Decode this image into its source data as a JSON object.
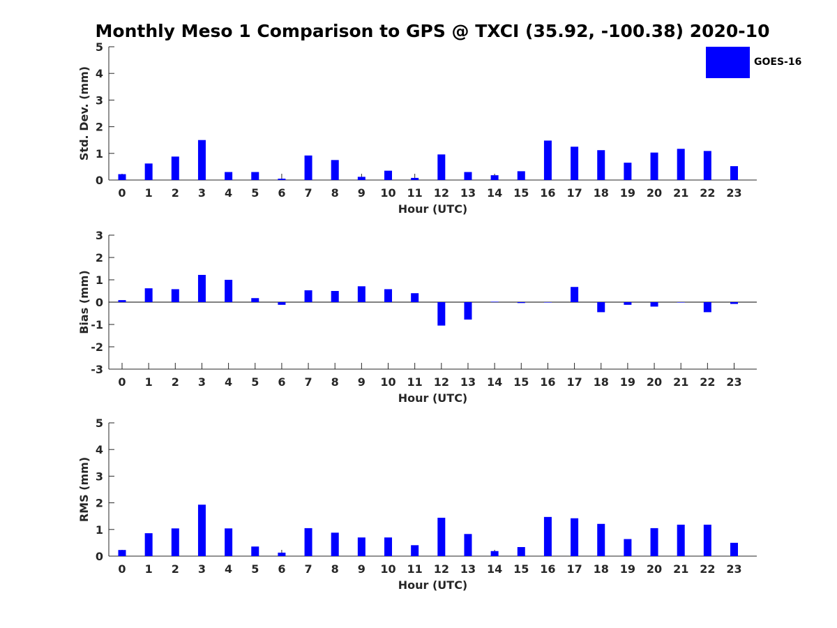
{
  "figure": {
    "title": "Monthly Meso 1 Comparison to GPS @ TXCI (35.92, -100.38) 2020-10",
    "bar_color": "#0000ff",
    "legend_label": "GOES-16"
  },
  "chart_data": [
    {
      "type": "bar",
      "title": "",
      "xlabel": "Hour (UTC)",
      "ylabel": "Std. Dev. (mm)",
      "categories": [
        "0",
        "1",
        "2",
        "3",
        "4",
        "5",
        "6",
        "7",
        "8",
        "9",
        "10",
        "11",
        "12",
        "13",
        "14",
        "15",
        "16",
        "17",
        "18",
        "19",
        "20",
        "21",
        "22",
        "23"
      ],
      "series": [
        {
          "name": "GOES-16",
          "values": [
            0.22,
            0.62,
            0.88,
            1.5,
            0.3,
            0.3,
            0.05,
            0.92,
            0.75,
            0.12,
            0.35,
            0.08,
            0.96,
            0.3,
            0.18,
            0.33,
            1.48,
            1.25,
            1.12,
            0.65,
            1.03,
            1.17,
            1.09,
            0.52
          ]
        }
      ],
      "ylim": [
        0,
        5
      ],
      "yticks": [
        0,
        1,
        2,
        3,
        4,
        5
      ],
      "grid": false,
      "legend": "top-right"
    },
    {
      "type": "bar",
      "title": "",
      "xlabel": "Hour (UTC)",
      "ylabel": "Bias (mm)",
      "categories": [
        "0",
        "1",
        "2",
        "3",
        "4",
        "5",
        "6",
        "7",
        "8",
        "9",
        "10",
        "11",
        "12",
        "13",
        "14",
        "15",
        "16",
        "17",
        "18",
        "19",
        "20",
        "21",
        "22",
        "23"
      ],
      "series": [
        {
          "name": "GOES-16",
          "values": [
            0.09,
            0.62,
            0.58,
            1.22,
            1.0,
            0.18,
            -0.12,
            0.53,
            0.5,
            0.71,
            0.58,
            0.4,
            -1.05,
            -0.78,
            0.02,
            -0.04,
            0.0,
            0.68,
            -0.45,
            -0.12,
            -0.2,
            0.0,
            -0.45,
            -0.08
          ]
        }
      ],
      "ylim": [
        -3,
        3
      ],
      "yticks": [
        -3,
        -2,
        -1,
        0,
        1,
        2,
        3
      ],
      "grid": false,
      "zero_line": true
    },
    {
      "type": "bar",
      "title": "",
      "xlabel": "Hour (UTC)",
      "ylabel": "RMS (mm)",
      "categories": [
        "0",
        "1",
        "2",
        "3",
        "4",
        "5",
        "6",
        "7",
        "8",
        "9",
        "10",
        "11",
        "12",
        "13",
        "14",
        "15",
        "16",
        "17",
        "18",
        "19",
        "20",
        "21",
        "22",
        "23"
      ],
      "series": [
        {
          "name": "GOES-16",
          "values": [
            0.23,
            0.86,
            1.04,
            1.93,
            1.04,
            0.36,
            0.13,
            1.05,
            0.88,
            0.7,
            0.7,
            0.41,
            1.44,
            0.83,
            0.19,
            0.34,
            1.47,
            1.42,
            1.21,
            0.64,
            1.05,
            1.18,
            1.18,
            0.5
          ]
        }
      ],
      "ylim": [
        0,
        5
      ],
      "yticks": [
        0,
        1,
        2,
        3,
        4,
        5
      ],
      "grid": false
    }
  ]
}
